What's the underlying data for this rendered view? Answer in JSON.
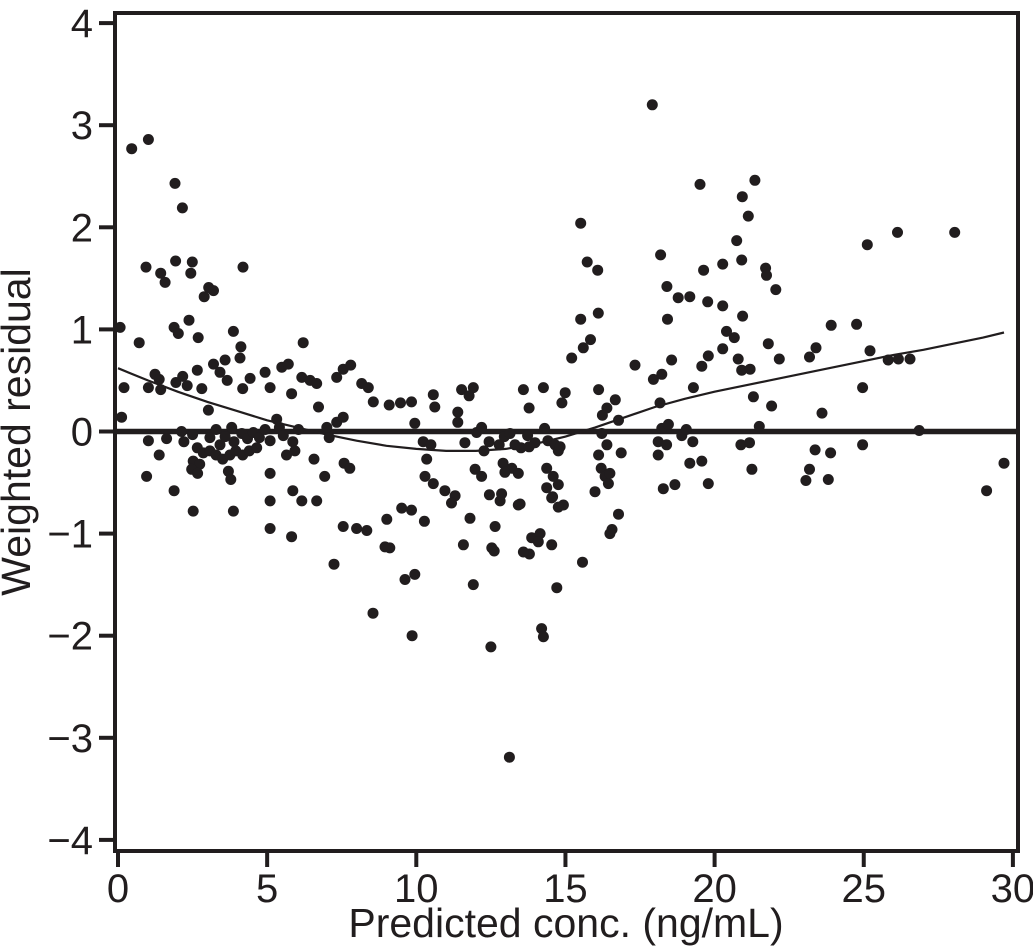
{
  "figure": {
    "background": "#ffffff",
    "axis_color": "#211d1e",
    "marker_color": "#211d1e"
  },
  "chart_data": {
    "type": "scatter",
    "title": "",
    "xlabel": "Predicted conc. (ng/mL)",
    "ylabel": "Weighted residual",
    "xlim": [
      0,
      30
    ],
    "ylim": [
      -4,
      4
    ],
    "x_ticks": [
      0,
      5,
      10,
      15,
      20,
      25,
      30
    ],
    "y_ticks": [
      4,
      3,
      2,
      1,
      0,
      -1,
      -2,
      -3,
      -4
    ],
    "grid": false,
    "legend": null,
    "zero_line": {
      "y": 0
    },
    "trend_line": {
      "points": [
        [
          0,
          0.62
        ],
        [
          1,
          0.5
        ],
        [
          2,
          0.39
        ],
        [
          3,
          0.29
        ],
        [
          4,
          0.2
        ],
        [
          5,
          0.11
        ],
        [
          6,
          0.04
        ],
        [
          7,
          -0.03
        ],
        [
          8,
          -0.09
        ],
        [
          9,
          -0.14
        ],
        [
          10,
          -0.17
        ],
        [
          11,
          -0.19
        ],
        [
          12,
          -0.19
        ],
        [
          13,
          -0.17
        ],
        [
          14,
          -0.12
        ],
        [
          15,
          -0.05
        ],
        [
          16,
          0.04
        ],
        [
          17,
          0.14
        ],
        [
          18,
          0.24
        ],
        [
          19,
          0.32
        ],
        [
          20,
          0.39
        ],
        [
          21,
          0.45
        ],
        [
          22,
          0.51
        ],
        [
          23,
          0.57
        ],
        [
          24,
          0.63
        ],
        [
          25,
          0.69
        ],
        [
          26,
          0.75
        ],
        [
          27,
          0.8
        ],
        [
          28,
          0.86
        ],
        [
          29,
          0.92
        ],
        [
          29.7,
          0.97
        ]
      ]
    },
    "points": [
      [
        0.46,
        2.77
      ],
      [
        1.02,
        2.86
      ],
      [
        1.91,
        2.43
      ],
      [
        2.16,
        2.19
      ],
      [
        0.94,
        1.61
      ],
      [
        1.43,
        1.55
      ],
      [
        1.58,
        1.46
      ],
      [
        1.93,
        1.67
      ],
      [
        2.49,
        1.66
      ],
      [
        2.44,
        1.55
      ],
      [
        3.04,
        1.41
      ],
      [
        3.2,
        1.38
      ],
      [
        2.89,
        1.32
      ],
      [
        4.19,
        1.61
      ],
      [
        0.07,
        1.02
      ],
      [
        2.38,
        1.09
      ],
      [
        1.88,
        1.02
      ],
      [
        2.02,
        0.96
      ],
      [
        3.87,
        0.98
      ],
      [
        0.71,
        0.87
      ],
      [
        2.69,
        0.92
      ],
      [
        6.21,
        0.87
      ],
      [
        4.12,
        0.83
      ],
      [
        1.24,
        0.56
      ],
      [
        1.38,
        0.51
      ],
      [
        0.2,
        0.43
      ],
      [
        1.02,
        0.43
      ],
      [
        1.43,
        0.41
      ],
      [
        1.94,
        0.48
      ],
      [
        2.17,
        0.54
      ],
      [
        2.32,
        0.45
      ],
      [
        2.66,
        0.6
      ],
      [
        2.81,
        0.42
      ],
      [
        3.2,
        0.66
      ],
      [
        3.42,
        0.58
      ],
      [
        3.59,
        0.7
      ],
      [
        3.66,
        0.5
      ],
      [
        4.09,
        0.72
      ],
      [
        4.18,
        0.42
      ],
      [
        4.43,
        0.52
      ],
      [
        4.93,
        0.58
      ],
      [
        5.1,
        0.43
      ],
      [
        5.49,
        0.63
      ],
      [
        5.71,
        0.66
      ],
      [
        5.82,
        0.37
      ],
      [
        6.16,
        0.53
      ],
      [
        6.44,
        0.5
      ],
      [
        6.66,
        0.47
      ],
      [
        6.72,
        0.24
      ],
      [
        7.33,
        0.53
      ],
      [
        7.55,
        0.61
      ],
      [
        7.8,
        0.65
      ],
      [
        8.17,
        0.47
      ],
      [
        8.39,
        0.43
      ],
      [
        8.56,
        0.29
      ],
      [
        9.09,
        0.26
      ],
      [
        9.47,
        0.28
      ],
      [
        9.84,
        0.29
      ],
      [
        3.03,
        0.21
      ],
      [
        0.12,
        0.14
      ],
      [
        2.13,
        0.0
      ],
      [
        2.5,
        -0.03
      ],
      [
        3.08,
        -0.06
      ],
      [
        3.29,
        0.02
      ],
      [
        3.42,
        -0.13
      ],
      [
        3.59,
        -0.05
      ],
      [
        3.81,
        0.04
      ],
      [
        3.89,
        -0.1
      ],
      [
        4.15,
        -0.02
      ],
      [
        4.34,
        -0.07
      ],
      [
        4.54,
        -0.01
      ],
      [
        4.74,
        -0.06
      ],
      [
        4.93,
        0.02
      ],
      [
        5.1,
        -0.09
      ],
      [
        5.32,
        0.12
      ],
      [
        5.41,
        0.04
      ],
      [
        5.54,
        -0.04
      ],
      [
        5.86,
        -0.1
      ],
      [
        6.05,
        0.02
      ],
      [
        7.0,
        0.04
      ],
      [
        7.08,
        -0.06
      ],
      [
        7.33,
        0.09
      ],
      [
        7.55,
        0.14
      ],
      [
        1.02,
        -0.09
      ],
      [
        1.63,
        -0.07
      ],
      [
        2.21,
        -0.1
      ],
      [
        2.66,
        -0.16
      ],
      [
        2.86,
        -0.21
      ],
      [
        3.08,
        -0.19
      ],
      [
        3.29,
        -0.23
      ],
      [
        3.51,
        -0.27
      ],
      [
        3.75,
        -0.23
      ],
      [
        3.95,
        -0.19
      ],
      [
        4.18,
        -0.23
      ],
      [
        4.4,
        -0.19
      ],
      [
        4.65,
        -0.16
      ],
      [
        5.65,
        -0.23
      ],
      [
        5.93,
        -0.19
      ],
      [
        6.57,
        -0.27
      ],
      [
        1.38,
        -0.23
      ],
      [
        2.52,
        -0.29
      ],
      [
        2.74,
        -0.32
      ],
      [
        2.47,
        -0.37
      ],
      [
        2.67,
        -0.41
      ],
      [
        3.7,
        -0.39
      ],
      [
        3.78,
        -0.47
      ],
      [
        5.1,
        -0.41
      ],
      [
        6.93,
        -0.44
      ],
      [
        7.58,
        -0.31
      ],
      [
        7.77,
        -0.36
      ],
      [
        0.96,
        -0.44
      ],
      [
        1.88,
        -0.58
      ],
      [
        2.52,
        -0.78
      ],
      [
        3.87,
        -0.78
      ],
      [
        5.1,
        -0.68
      ],
      [
        5.86,
        -0.58
      ],
      [
        6.16,
        -0.68
      ],
      [
        6.66,
        -0.68
      ],
      [
        7.55,
        -0.93
      ],
      [
        8.0,
        -0.95
      ],
      [
        8.34,
        -0.97
      ],
      [
        9.01,
        -0.86
      ],
      [
        9.51,
        -0.75
      ],
      [
        9.84,
        -0.77
      ],
      [
        5.1,
        -0.95
      ],
      [
        5.82,
        -1.03
      ],
      [
        7.24,
        -1.3
      ],
      [
        8.55,
        -1.78
      ],
      [
        9.11,
        -1.14
      ],
      [
        8.95,
        -1.13
      ],
      [
        9.62,
        -1.45
      ],
      [
        15.21,
        0.72
      ],
      [
        15.6,
        0.82
      ],
      [
        17.33,
        0.65
      ],
      [
        18.56,
        0.7
      ],
      [
        19.57,
        0.64
      ],
      [
        19.79,
        0.74
      ],
      [
        10.57,
        0.36
      ],
      [
        10.62,
        0.24
      ],
      [
        11.52,
        0.41
      ],
      [
        11.91,
        0.43
      ],
      [
        11.77,
        0.35
      ],
      [
        13.59,
        0.41
      ],
      [
        13.78,
        0.23
      ],
      [
        14.26,
        0.43
      ],
      [
        14.99,
        0.38
      ],
      [
        14.88,
        0.28
      ],
      [
        16.11,
        0.41
      ],
      [
        16.67,
        0.31
      ],
      [
        16.39,
        0.23
      ],
      [
        17.95,
        0.51
      ],
      [
        18.23,
        0.56
      ],
      [
        18.17,
        0.28
      ],
      [
        19.29,
        0.43
      ],
      [
        11.39,
        0.19
      ],
      [
        11.39,
        0.09
      ],
      [
        15.84,
        0.9
      ],
      [
        9.95,
        0.08
      ],
      [
        10.23,
        -0.1
      ],
      [
        10.49,
        -0.13
      ],
      [
        11.63,
        -0.11
      ],
      [
        12.02,
        -0.01
      ],
      [
        12.19,
        0.04
      ],
      [
        12.44,
        -0.1
      ],
      [
        12.78,
        -0.13
      ],
      [
        12.95,
        -0.05
      ],
      [
        13.14,
        -0.02
      ],
      [
        13.31,
        -0.13
      ],
      [
        13.51,
        -0.16
      ],
      [
        13.73,
        -0.04
      ],
      [
        13.98,
        -0.11
      ],
      [
        14.3,
        0.03
      ],
      [
        14.41,
        -0.09
      ],
      [
        14.65,
        -0.13
      ],
      [
        14.76,
        -0.19
      ],
      [
        16.24,
        0.16
      ],
      [
        16.78,
        0.11
      ],
      [
        16.22,
        -0.02
      ],
      [
        16.39,
        -0.13
      ],
      [
        16.87,
        -0.21
      ],
      [
        18.23,
        0.03
      ],
      [
        18.45,
        0.07
      ],
      [
        18.11,
        -0.1
      ],
      [
        18.39,
        -0.13
      ],
      [
        18.9,
        -0.04
      ],
      [
        19.05,
        0.02
      ],
      [
        19.27,
        -0.1
      ],
      [
        13.78,
        -0.15
      ],
      [
        14.82,
        -0.15
      ],
      [
        12.27,
        -0.19
      ],
      [
        10.35,
        -0.27
      ],
      [
        10.29,
        -0.44
      ],
      [
        10.57,
        -0.51
      ],
      [
        10.96,
        -0.58
      ],
      [
        11.3,
        -0.63
      ],
      [
        11.97,
        -0.37
      ],
      [
        12.19,
        -0.44
      ],
      [
        12.91,
        -0.31
      ],
      [
        13.2,
        -0.36
      ],
      [
        13.42,
        -0.41
      ],
      [
        14.37,
        -0.36
      ],
      [
        14.59,
        -0.44
      ],
      [
        14.76,
        -0.52
      ],
      [
        14.93,
        -0.72
      ],
      [
        16.11,
        -0.23
      ],
      [
        16.2,
        -0.36
      ],
      [
        16.33,
        -0.44
      ],
      [
        16.44,
        -0.51
      ],
      [
        18.11,
        -0.23
      ],
      [
        18.28,
        -0.56
      ],
      [
        18.67,
        -0.52
      ],
      [
        19.17,
        -0.31
      ],
      [
        19.57,
        -0.29
      ],
      [
        19.79,
        -0.51
      ],
      [
        12.97,
        -0.4
      ],
      [
        16.49,
        -0.41
      ],
      [
        14.37,
        -0.55
      ],
      [
        14.57,
        -0.64
      ],
      [
        15.99,
        -0.59
      ],
      [
        10.27,
        -0.88
      ],
      [
        11.18,
        -0.7
      ],
      [
        11.8,
        -0.85
      ],
      [
        12.64,
        -0.93
      ],
      [
        12.81,
        -0.68
      ],
      [
        13.42,
        -0.72
      ],
      [
        14.54,
        -0.65
      ],
      [
        14.76,
        -0.74
      ],
      [
        16.78,
        -0.81
      ],
      [
        16.56,
        -0.96
      ],
      [
        12.45,
        -0.62
      ],
      [
        12.86,
        -0.61
      ],
      [
        13.48,
        -0.71
      ],
      [
        11.58,
        -1.11
      ],
      [
        12.53,
        -1.14
      ],
      [
        13.87,
        -1.04
      ],
      [
        14.15,
        -1.0
      ],
      [
        13.79,
        -1.2
      ],
      [
        14.54,
        -1.11
      ],
      [
        11.91,
        -1.5
      ],
      [
        14.71,
        -1.53
      ],
      [
        14.2,
        -1.93
      ],
      [
        9.95,
        -1.4
      ],
      [
        14.09,
        -1.08
      ],
      [
        16.49,
        -1.0
      ],
      [
        12.61,
        -1.17
      ],
      [
        13.59,
        -1.18
      ],
      [
        15.57,
        -1.28
      ],
      [
        9.86,
        -2.0
      ],
      [
        12.5,
        -2.11
      ],
      [
        14.26,
        -2.01
      ],
      [
        13.12,
        -3.19
      ],
      [
        17.91,
        3.2
      ],
      [
        19.51,
        2.42
      ],
      [
        15.51,
        2.04
      ],
      [
        15.73,
        1.66
      ],
      [
        16.08,
        1.58
      ],
      [
        18.19,
        1.73
      ],
      [
        19.63,
        1.58
      ],
      [
        18.4,
        1.42
      ],
      [
        18.78,
        1.31
      ],
      [
        19.17,
        1.32
      ],
      [
        19.77,
        1.27
      ],
      [
        15.51,
        1.1
      ],
      [
        16.1,
        1.16
      ],
      [
        18.42,
        1.1
      ],
      [
        20.93,
        2.3
      ],
      [
        21.13,
        2.11
      ],
      [
        21.35,
        2.46
      ],
      [
        20.74,
        1.87
      ],
      [
        20.91,
        1.68
      ],
      [
        20.27,
        1.64
      ],
      [
        21.71,
        1.6
      ],
      [
        21.74,
        1.53
      ],
      [
        22.05,
        1.39
      ],
      [
        25.12,
        1.83
      ],
      [
        26.13,
        1.95
      ],
      [
        28.05,
        1.95
      ],
      [
        20.27,
        1.23
      ],
      [
        20.94,
        1.13
      ],
      [
        20.66,
        0.92
      ],
      [
        21.8,
        0.86
      ],
      [
        23.91,
        1.04
      ],
      [
        24.76,
        1.05
      ],
      [
        20.4,
        0.98
      ],
      [
        20.27,
        0.81
      ],
      [
        20.79,
        0.71
      ],
      [
        22.17,
        0.71
      ],
      [
        23.18,
        0.73
      ],
      [
        23.4,
        0.82
      ],
      [
        25.21,
        0.79
      ],
      [
        25.82,
        0.7
      ],
      [
        26.16,
        0.71
      ],
      [
        26.55,
        0.71
      ],
      [
        20.91,
        0.6
      ],
      [
        21.19,
        0.61
      ],
      [
        21.3,
        0.34
      ],
      [
        21.91,
        0.25
      ],
      [
        23.6,
        0.18
      ],
      [
        24.96,
        0.43
      ],
      [
        21.5,
        0.05
      ],
      [
        26.86,
        0.01
      ],
      [
        20.88,
        -0.13
      ],
      [
        21.17,
        -0.11
      ],
      [
        21.25,
        -0.37
      ],
      [
        23.37,
        -0.18
      ],
      [
        23.89,
        -0.21
      ],
      [
        24.96,
        -0.13
      ],
      [
        23.18,
        -0.37
      ],
      [
        23.06,
        -0.48
      ],
      [
        23.81,
        -0.47
      ],
      [
        29.7,
        -0.31
      ],
      [
        29.12,
        -0.58
      ]
    ]
  }
}
